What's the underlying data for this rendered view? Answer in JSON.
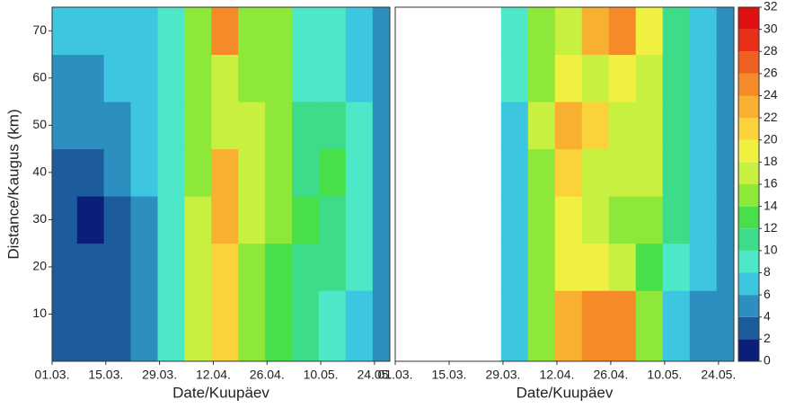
{
  "chart_data": {
    "type": "heatmap",
    "ylabel": "Distance/Kaugus (km)",
    "ylim": [
      0,
      75
    ],
    "yticks": [
      10,
      20,
      30,
      40,
      50,
      60,
      70
    ],
    "xlim": [
      0,
      88
    ],
    "xticks": [
      {
        "value": 0,
        "label": "01.03."
      },
      {
        "value": 14,
        "label": "15.03."
      },
      {
        "value": 28,
        "label": "29.03."
      },
      {
        "value": 42,
        "label": "12.04."
      },
      {
        "value": 56,
        "label": "26.04."
      },
      {
        "value": 70,
        "label": "10.05."
      },
      {
        "value": 84,
        "label": "24.05."
      }
    ],
    "levels": [
      0,
      2,
      4,
      6,
      8,
      10,
      12,
      14,
      16,
      18,
      20,
      22,
      24,
      26,
      28,
      30,
      32
    ],
    "colors": [
      "#0b1f7a",
      "#1d5c9c",
      "#2d8fbf",
      "#3cc6e0",
      "#4de8c8",
      "#3ddc8a",
      "#48e04a",
      "#8ee83a",
      "#c8f040",
      "#f0f040",
      "#fad23a",
      "#f8b030",
      "#f58a28",
      "#f06020",
      "#e83018",
      "#e01010"
    ],
    "panels": [
      {
        "xlabel": "Date/Kuupäev",
        "x": [
          3,
          10,
          17,
          24,
          31,
          38,
          45,
          52,
          59,
          66,
          73,
          80,
          87
        ],
        "y": [
          10,
          20,
          30,
          40,
          50,
          60,
          70
        ],
        "z": [
          [
            3,
            2,
            3,
            5,
            9,
            16,
            20,
            15,
            13,
            10,
            9,
            7,
            4
          ],
          [
            3,
            2,
            3,
            5,
            9,
            16,
            21,
            15,
            13,
            11,
            11,
            8,
            4
          ],
          [
            2,
            1,
            3,
            5,
            9,
            16,
            23,
            16,
            14,
            12,
            10,
            8,
            4
          ],
          [
            3,
            3,
            4,
            6,
            9,
            15,
            23,
            16,
            14,
            10,
            12,
            8,
            4
          ],
          [
            4,
            4,
            5,
            6,
            9,
            15,
            16,
            16,
            14,
            10,
            11,
            9,
            5
          ],
          [
            5,
            5,
            6,
            6,
            8,
            14,
            16,
            14,
            15,
            9,
            9,
            7,
            5
          ],
          [
            6,
            6,
            7,
            7,
            8,
            14,
            24,
            14,
            15,
            9,
            9,
            6,
            5
          ]
        ]
      },
      {
        "xlabel": "Date/Kuupäev",
        "x": [
          3,
          10,
          17,
          24,
          31,
          38,
          45,
          52,
          59,
          66,
          73,
          80,
          87
        ],
        "y": [
          10,
          20,
          30,
          40,
          50,
          60,
          70
        ],
        "z": [
          [
            null,
            null,
            null,
            null,
            6,
            14,
            22,
            25,
            25,
            15,
            6,
            5,
            4
          ],
          [
            null,
            null,
            null,
            null,
            6,
            14,
            18,
            18,
            16,
            13,
            8,
            6,
            4
          ],
          [
            null,
            null,
            null,
            null,
            6,
            15,
            18,
            17,
            15,
            14,
            10,
            6,
            4
          ],
          [
            null,
            null,
            null,
            null,
            7,
            15,
            20,
            17,
            16,
            16,
            10,
            6,
            4
          ],
          [
            null,
            null,
            null,
            null,
            7,
            16,
            22,
            20,
            17,
            16,
            10,
            6,
            4
          ],
          [
            null,
            null,
            null,
            null,
            8,
            15,
            19,
            17,
            18,
            16,
            10,
            6,
            4
          ],
          [
            null,
            null,
            null,
            null,
            8,
            14,
            17,
            22,
            24,
            18,
            10,
            6,
            4
          ]
        ]
      }
    ]
  }
}
